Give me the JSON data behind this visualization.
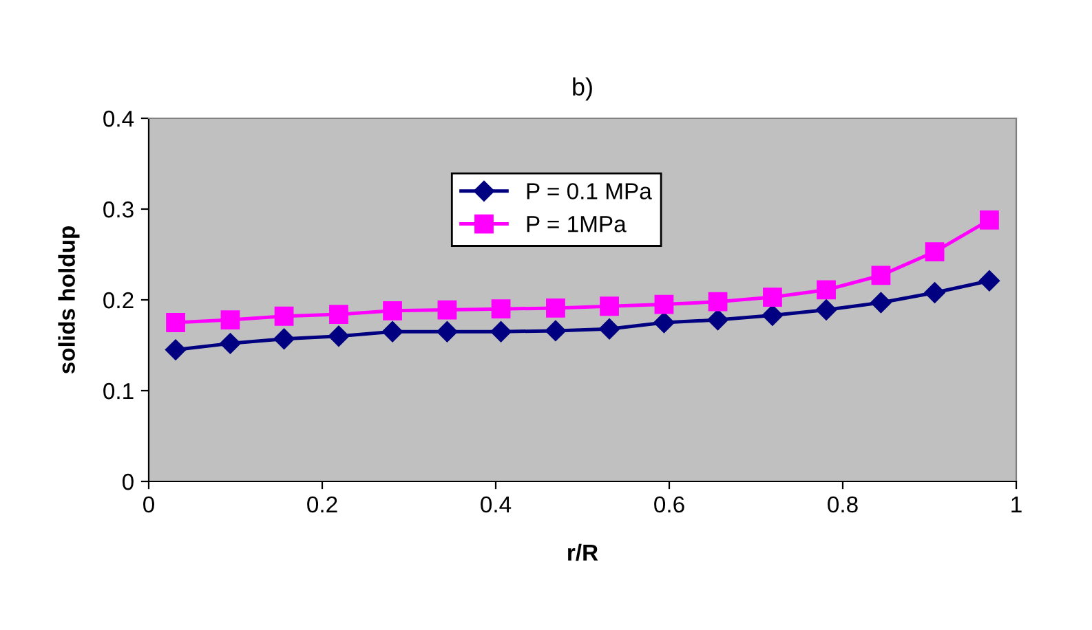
{
  "chart_data": {
    "type": "line",
    "title": "b)",
    "xlabel": "r/R",
    "ylabel": "solids holdup",
    "x": [
      0.031,
      0.094,
      0.156,
      0.219,
      0.281,
      0.344,
      0.406,
      0.469,
      0.531,
      0.594,
      0.656,
      0.719,
      0.781,
      0.844,
      0.906,
      0.969
    ],
    "series": [
      {
        "name": "P = 0.1 MPa",
        "color": "#000080",
        "marker": "diamond",
        "values": [
          0.145,
          0.152,
          0.157,
          0.16,
          0.165,
          0.165,
          0.165,
          0.166,
          0.168,
          0.175,
          0.178,
          0.183,
          0.189,
          0.197,
          0.208,
          0.221
        ]
      },
      {
        "name": "P = 1MPa",
        "color": "#ff00ff",
        "marker": "square",
        "values": [
          0.175,
          0.178,
          0.182,
          0.184,
          0.188,
          0.189,
          0.19,
          0.191,
          0.193,
          0.195,
          0.198,
          0.203,
          0.211,
          0.227,
          0.253,
          0.288
        ]
      }
    ],
    "xlim": [
      0,
      1
    ],
    "xticks": [
      0,
      0.2,
      0.4,
      0.6,
      0.8,
      1
    ],
    "ylim": [
      0,
      0.4
    ],
    "yticks": [
      0,
      0.1,
      0.2,
      0.3,
      0.4
    ],
    "grid": false,
    "legend": "top",
    "line_style": "solid"
  }
}
